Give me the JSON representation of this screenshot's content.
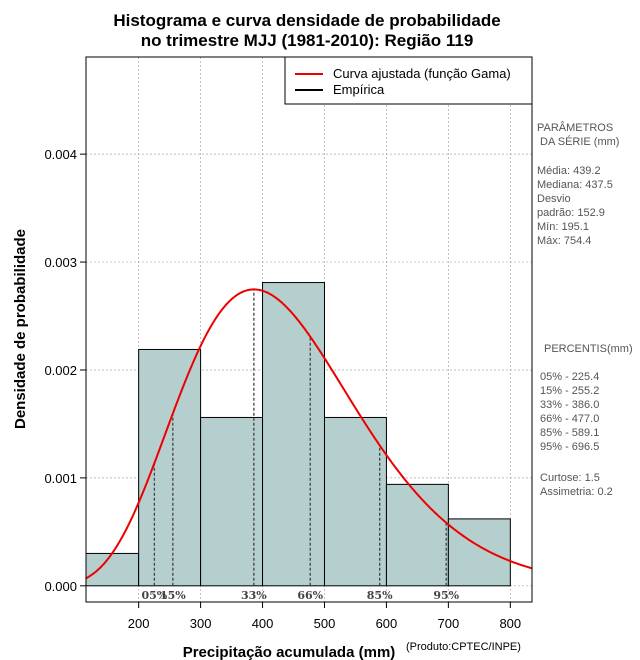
{
  "chart_data": {
    "type": "histogram",
    "title_line1": "Histograma e curva densidade de probabilidade",
    "title_line2": "no trimestre MJJ (1981-2010): Região 119",
    "xlabel": "Precipitação acumulada (mm)",
    "ylabel": "Densidade de probabilidade",
    "credit": "(Produto:CPTEC/INPE)",
    "xlim": [
      115,
      835
    ],
    "ylim": [
      -0.00015,
      0.0049
    ],
    "x_ticks": [
      200,
      300,
      400,
      500,
      600,
      700,
      800
    ],
    "x_tick_labels": [
      "200",
      "300",
      "400",
      "500",
      "600",
      "700",
      "800"
    ],
    "y_ticks": [
      0,
      0.001,
      0.002,
      0.003,
      0.004
    ],
    "y_tick_labels": [
      "0.000",
      "0.001",
      "0.002",
      "0.003",
      "0.004"
    ],
    "bins": [
      {
        "start": 100,
        "end": 200,
        "density": 0.0003
      },
      {
        "start": 200,
        "end": 300,
        "density": 0.00219
      },
      {
        "start": 300,
        "end": 400,
        "density": 0.00156
      },
      {
        "start": 400,
        "end": 500,
        "density": 0.00281
      },
      {
        "start": 500,
        "end": 600,
        "density": 0.00156
      },
      {
        "start": 600,
        "end": 700,
        "density": 0.00094
      },
      {
        "start": 700,
        "end": 800,
        "density": 0.00062
      }
    ],
    "gamma_fit": {
      "shape": 8.23,
      "scale": 53.4
    },
    "percentile_lines": [
      {
        "label": "05%",
        "x": 225.4
      },
      {
        "label": "15%",
        "x": 255.2
      },
      {
        "label": "33%",
        "x": 386.0
      },
      {
        "label": "66%",
        "x": 477.0
      },
      {
        "label": "85%",
        "x": 589.1
      },
      {
        "label": "95%",
        "x": 696.5
      }
    ],
    "legend": {
      "position": "top-right",
      "items": [
        {
          "label": "Curva ajustada (função Gama)",
          "color": "#ee0000"
        },
        {
          "label": "Empírica",
          "color": "#000000"
        }
      ]
    },
    "colors": {
      "bar_fill": "#b5cfcf",
      "curve": "#ee0000",
      "grid": "#aaaaaa"
    },
    "grid": true
  },
  "parameters": {
    "header1": "PARÂMETROS",
    "header2": "DA SÉRIE (mm)",
    "lines": [
      "Média:  439.2",
      "Mediana:  437.5",
      "Desvio",
      "padrão:  152.9",
      "Mín:  195.1",
      "Máx:  754.4"
    ]
  },
  "percentiles": {
    "header": "PERCENTIS(mm)",
    "lines": [
      "05% -   225.4",
      "15% -   255.2",
      "33% -   386.0",
      "66% -   477.0",
      "85% -   589.1",
      "95% -   696.5"
    ]
  },
  "stats": {
    "lines": [
      "Curtose:  1.5",
      "Assimetria:  0.2"
    ]
  }
}
